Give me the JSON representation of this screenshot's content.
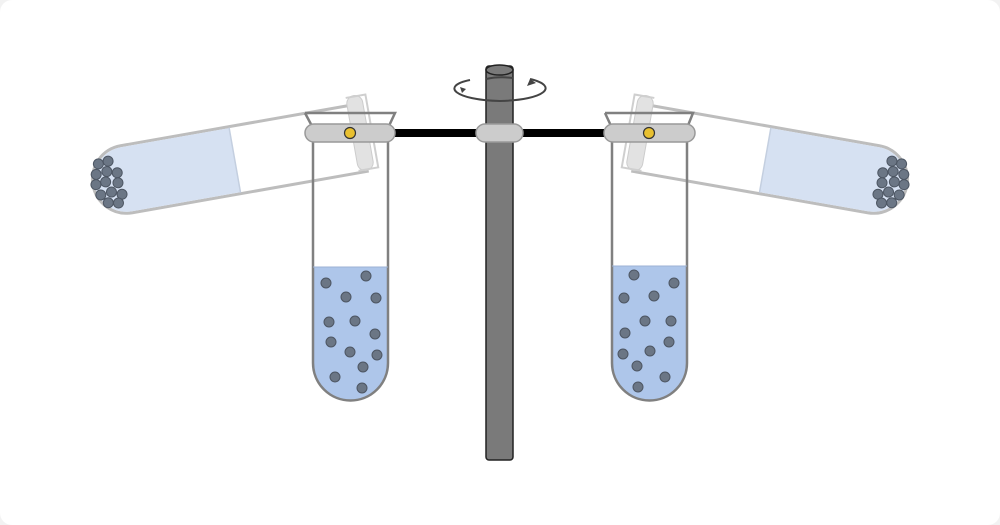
{
  "diagram": {
    "subject": "centrifuge",
    "colors": {
      "background": "#ffffff",
      "spindle": "#7a7a7a",
      "spindle_outline": "#222222",
      "arm": "#000000",
      "clamp": "#cccccc",
      "pivot": "#e8c030",
      "liquid": "#aec6ea",
      "liquid_faded": "#d6e1f2",
      "tube_outline": "#808080",
      "tube_faded_outline": "#bdbdbd",
      "particle": "#6b7685",
      "particle_outline": "#4d5663"
    },
    "left_tube": {
      "hanging_particles": 14,
      "swung_particles": 17
    },
    "right_tube": {
      "hanging_particles": 14,
      "swung_particles": 17
    },
    "rotation_indicator": "rotation-arrow-icon"
  }
}
